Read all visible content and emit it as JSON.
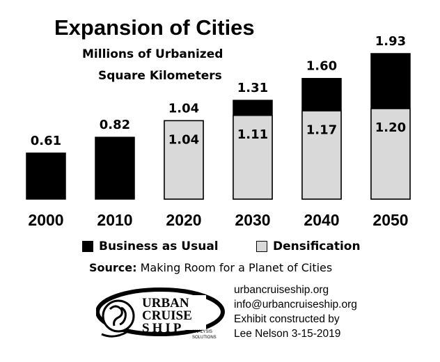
{
  "chart_data": {
    "type": "bar",
    "title": "Expansion of Cities",
    "subtitle": [
      "Millions of Urbanized",
      "Square Kilometers"
    ],
    "categories": [
      "2000",
      "2010",
      "2020",
      "2030",
      "2040",
      "2050"
    ],
    "series": [
      {
        "name": "Business as Usual",
        "values": [
          0.61,
          0.82,
          1.04,
          1.31,
          1.6,
          1.93
        ],
        "color": "#000000"
      },
      {
        "name": "Densification",
        "values": [
          null,
          null,
          1.04,
          1.11,
          1.17,
          1.2
        ],
        "color": "#d9d9d9"
      }
    ],
    "ylim": [
      0,
      1.93
    ],
    "grid": false,
    "legend": "bottom"
  },
  "source": {
    "label": "Source:",
    "text": "Making Room for a Planet of Cities"
  },
  "contact": {
    "website": "urbancruiseship.org",
    "email": "info@urbancruiseship.org",
    "credit_line1": "Exhibit constructed by",
    "credit_line2": "Lee Nelson 3-15-2019"
  },
  "logo": {
    "line1": "URBAN",
    "line2": "CRUISE",
    "line3": "SHIP",
    "tag1": "ANALYSIS",
    "tag2": "SOLUTIONS"
  }
}
